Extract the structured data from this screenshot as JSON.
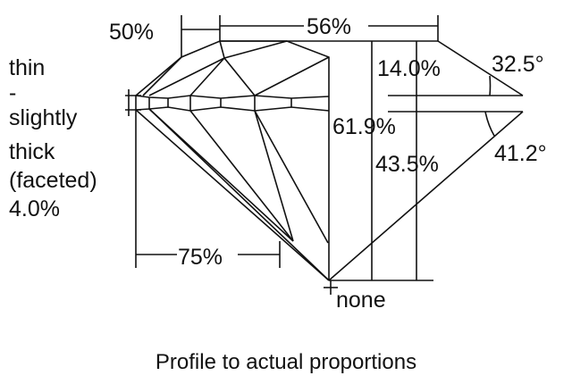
{
  "labels": {
    "table_half": "50%",
    "table": "56%",
    "crown_height": "14.0%",
    "crown_angle": "32.5°",
    "total_depth": "61.9%",
    "pavilion_depth": "43.5%",
    "pavilion_angle": "41.2°",
    "lower_half": "75%",
    "culet": "none",
    "girdle": [
      "thin",
      "-",
      "slightly",
      "thick",
      "(faceted)",
      "4.0%"
    ]
  },
  "caption": "Profile to actual proportions"
}
